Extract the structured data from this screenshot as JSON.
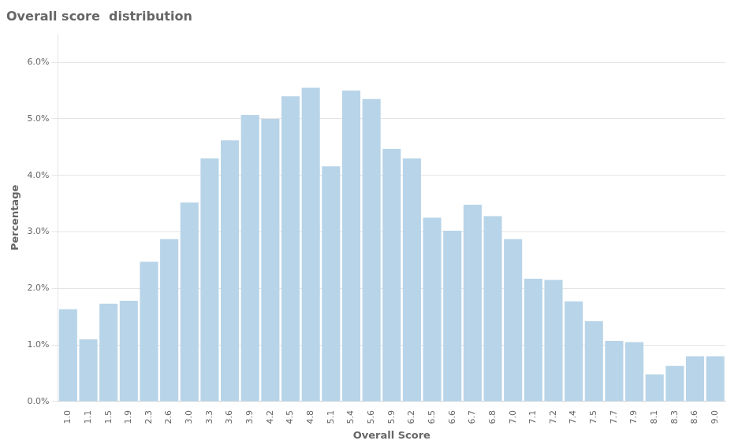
{
  "chart_data": {
    "type": "bar",
    "title": "Overall score  distribution",
    "xlabel": "Overall Score",
    "ylabel": "Percentage",
    "categories": [
      "1.0",
      "1.1",
      "1.5",
      "1.9",
      "2.3",
      "2.6",
      "3.0",
      "3.3",
      "3.6",
      "3.9",
      "4.2",
      "4.5",
      "4.8",
      "5.1",
      "5.4",
      "5.6",
      "5.9",
      "6.2",
      "6.5",
      "6.6",
      "6.7",
      "6.8",
      "7.0",
      "7.1",
      "7.2",
      "7.4",
      "7.5",
      "7.7",
      "7.9",
      "8.1",
      "8.3",
      "8.6",
      "9.0"
    ],
    "values": [
      1.63,
      1.1,
      1.73,
      1.78,
      2.47,
      2.87,
      3.52,
      4.3,
      4.62,
      5.07,
      5.0,
      5.4,
      5.55,
      4.16,
      5.5,
      5.35,
      4.47,
      4.3,
      3.25,
      3.02,
      3.48,
      3.28,
      2.87,
      2.17,
      2.15,
      1.77,
      1.42,
      1.07,
      1.05,
      0.48,
      0.63,
      0.8,
      0.8
    ],
    "color": "#b8d4e8",
    "ylim": [
      0,
      6.5
    ],
    "yticks": [
      {
        "value": 0.0,
        "label": "0.0%"
      },
      {
        "value": 1.0,
        "label": "1.0%"
      },
      {
        "value": 2.0,
        "label": "2.0%"
      },
      {
        "value": 3.0,
        "label": "3.0%"
      },
      {
        "value": 4.0,
        "label": "4.0%"
      },
      {
        "value": 5.0,
        "label": "5.0%"
      },
      {
        "value": 6.0,
        "label": "6.0%"
      }
    ],
    "grid": true
  }
}
